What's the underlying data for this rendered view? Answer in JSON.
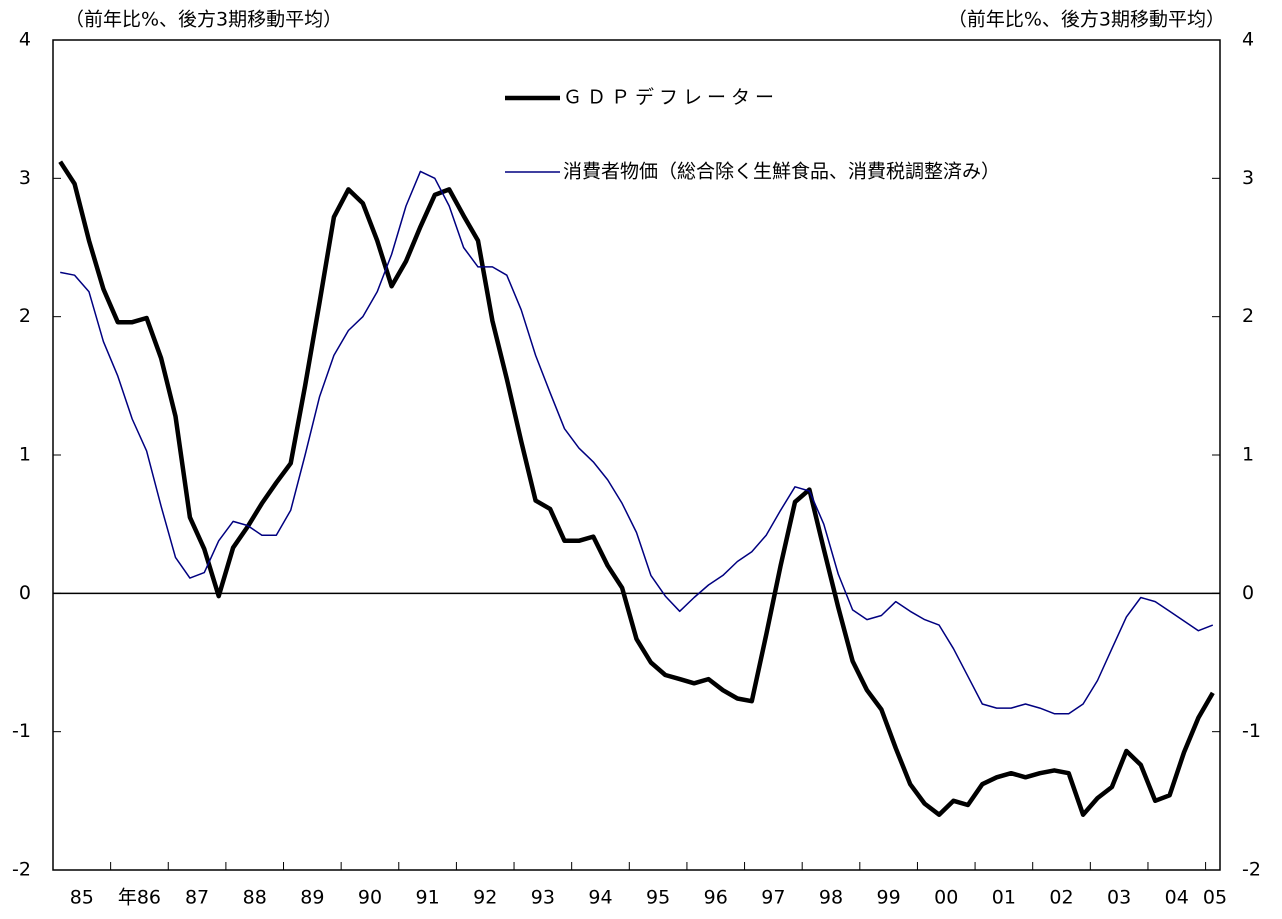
{
  "chart_data": {
    "type": "line",
    "y_axis_label": "（前年比%、後方3期移動平均）",
    "y2_axis_label": "（前年比%、後方3期移動平均）",
    "x_labels": [
      "85",
      "年86",
      "87",
      "88",
      "89",
      "90",
      "91",
      "92",
      "93",
      "94",
      "95",
      "96",
      "97",
      "98",
      "99",
      "00",
      "01",
      "02",
      "03",
      "04",
      "05"
    ],
    "ylim": [
      -2,
      4
    ],
    "yticks": [
      -2,
      -1,
      0,
      1,
      2,
      3,
      4
    ],
    "y2lim": [
      -2,
      4
    ],
    "y2ticks": [
      -2,
      -1,
      0,
      1,
      2,
      3,
      4
    ],
    "legend": "top",
    "series": [
      {
        "name": "ＧＤＰデフレーター",
        "color": "#000000",
        "width": "thick",
        "values": [
          3.12,
          2.96,
          2.55,
          2.2,
          1.96,
          1.96,
          1.99,
          1.7,
          1.28,
          0.55,
          0.32,
          -0.02,
          0.33,
          0.48,
          0.65,
          0.8,
          0.94,
          1.5,
          2.1,
          2.72,
          2.92,
          2.82,
          2.55,
          2.22,
          2.4,
          2.65,
          2.88,
          2.92,
          2.73,
          2.55,
          1.97,
          1.55,
          1.1,
          0.67,
          0.61,
          0.38,
          0.38,
          0.41,
          0.2,
          0.04,
          -0.33,
          -0.5,
          -0.59,
          -0.62,
          -0.65,
          -0.62,
          -0.7,
          -0.76,
          -0.78,
          -0.3,
          0.2,
          0.66,
          0.75,
          0.32,
          -0.1,
          -0.49,
          -0.7,
          -0.84,
          -1.12,
          -1.38,
          -1.52,
          -1.6,
          -1.5,
          -1.53,
          -1.38,
          -1.33,
          -1.3,
          -1.33,
          -1.3,
          -1.28,
          -1.3,
          -1.6,
          -1.48,
          -1.4,
          -1.14,
          -1.24,
          -1.5,
          -1.46,
          -1.15,
          -0.9,
          -0.72
        ]
      },
      {
        "name": "消費者物価（総合除く生鮮食品、消費税調整済み）",
        "color": "#000080",
        "width": "thin",
        "values": [
          2.32,
          2.3,
          2.18,
          1.82,
          1.57,
          1.26,
          1.03,
          0.63,
          0.26,
          0.11,
          0.15,
          0.38,
          0.52,
          0.49,
          0.42,
          0.42,
          0.6,
          1.0,
          1.42,
          1.72,
          1.9,
          2.0,
          2.18,
          2.45,
          2.8,
          3.05,
          3.0,
          2.8,
          2.5,
          2.36,
          2.36,
          2.3,
          2.05,
          1.72,
          1.45,
          1.19,
          1.05,
          0.95,
          0.82,
          0.65,
          0.44,
          0.13,
          -0.02,
          -0.13,
          -0.03,
          0.06,
          0.13,
          0.23,
          0.3,
          0.42,
          0.6,
          0.77,
          0.74,
          0.5,
          0.14,
          -0.12,
          -0.19,
          -0.16,
          -0.06,
          -0.13,
          -0.19,
          -0.23,
          -0.4,
          -0.6,
          -0.8,
          -0.83,
          -0.83,
          -0.8,
          -0.83,
          -0.87,
          -0.87,
          -0.8,
          -0.63,
          -0.4,
          -0.17,
          -0.03,
          -0.06,
          -0.13,
          -0.2,
          -0.27,
          -0.23
        ]
      }
    ]
  }
}
